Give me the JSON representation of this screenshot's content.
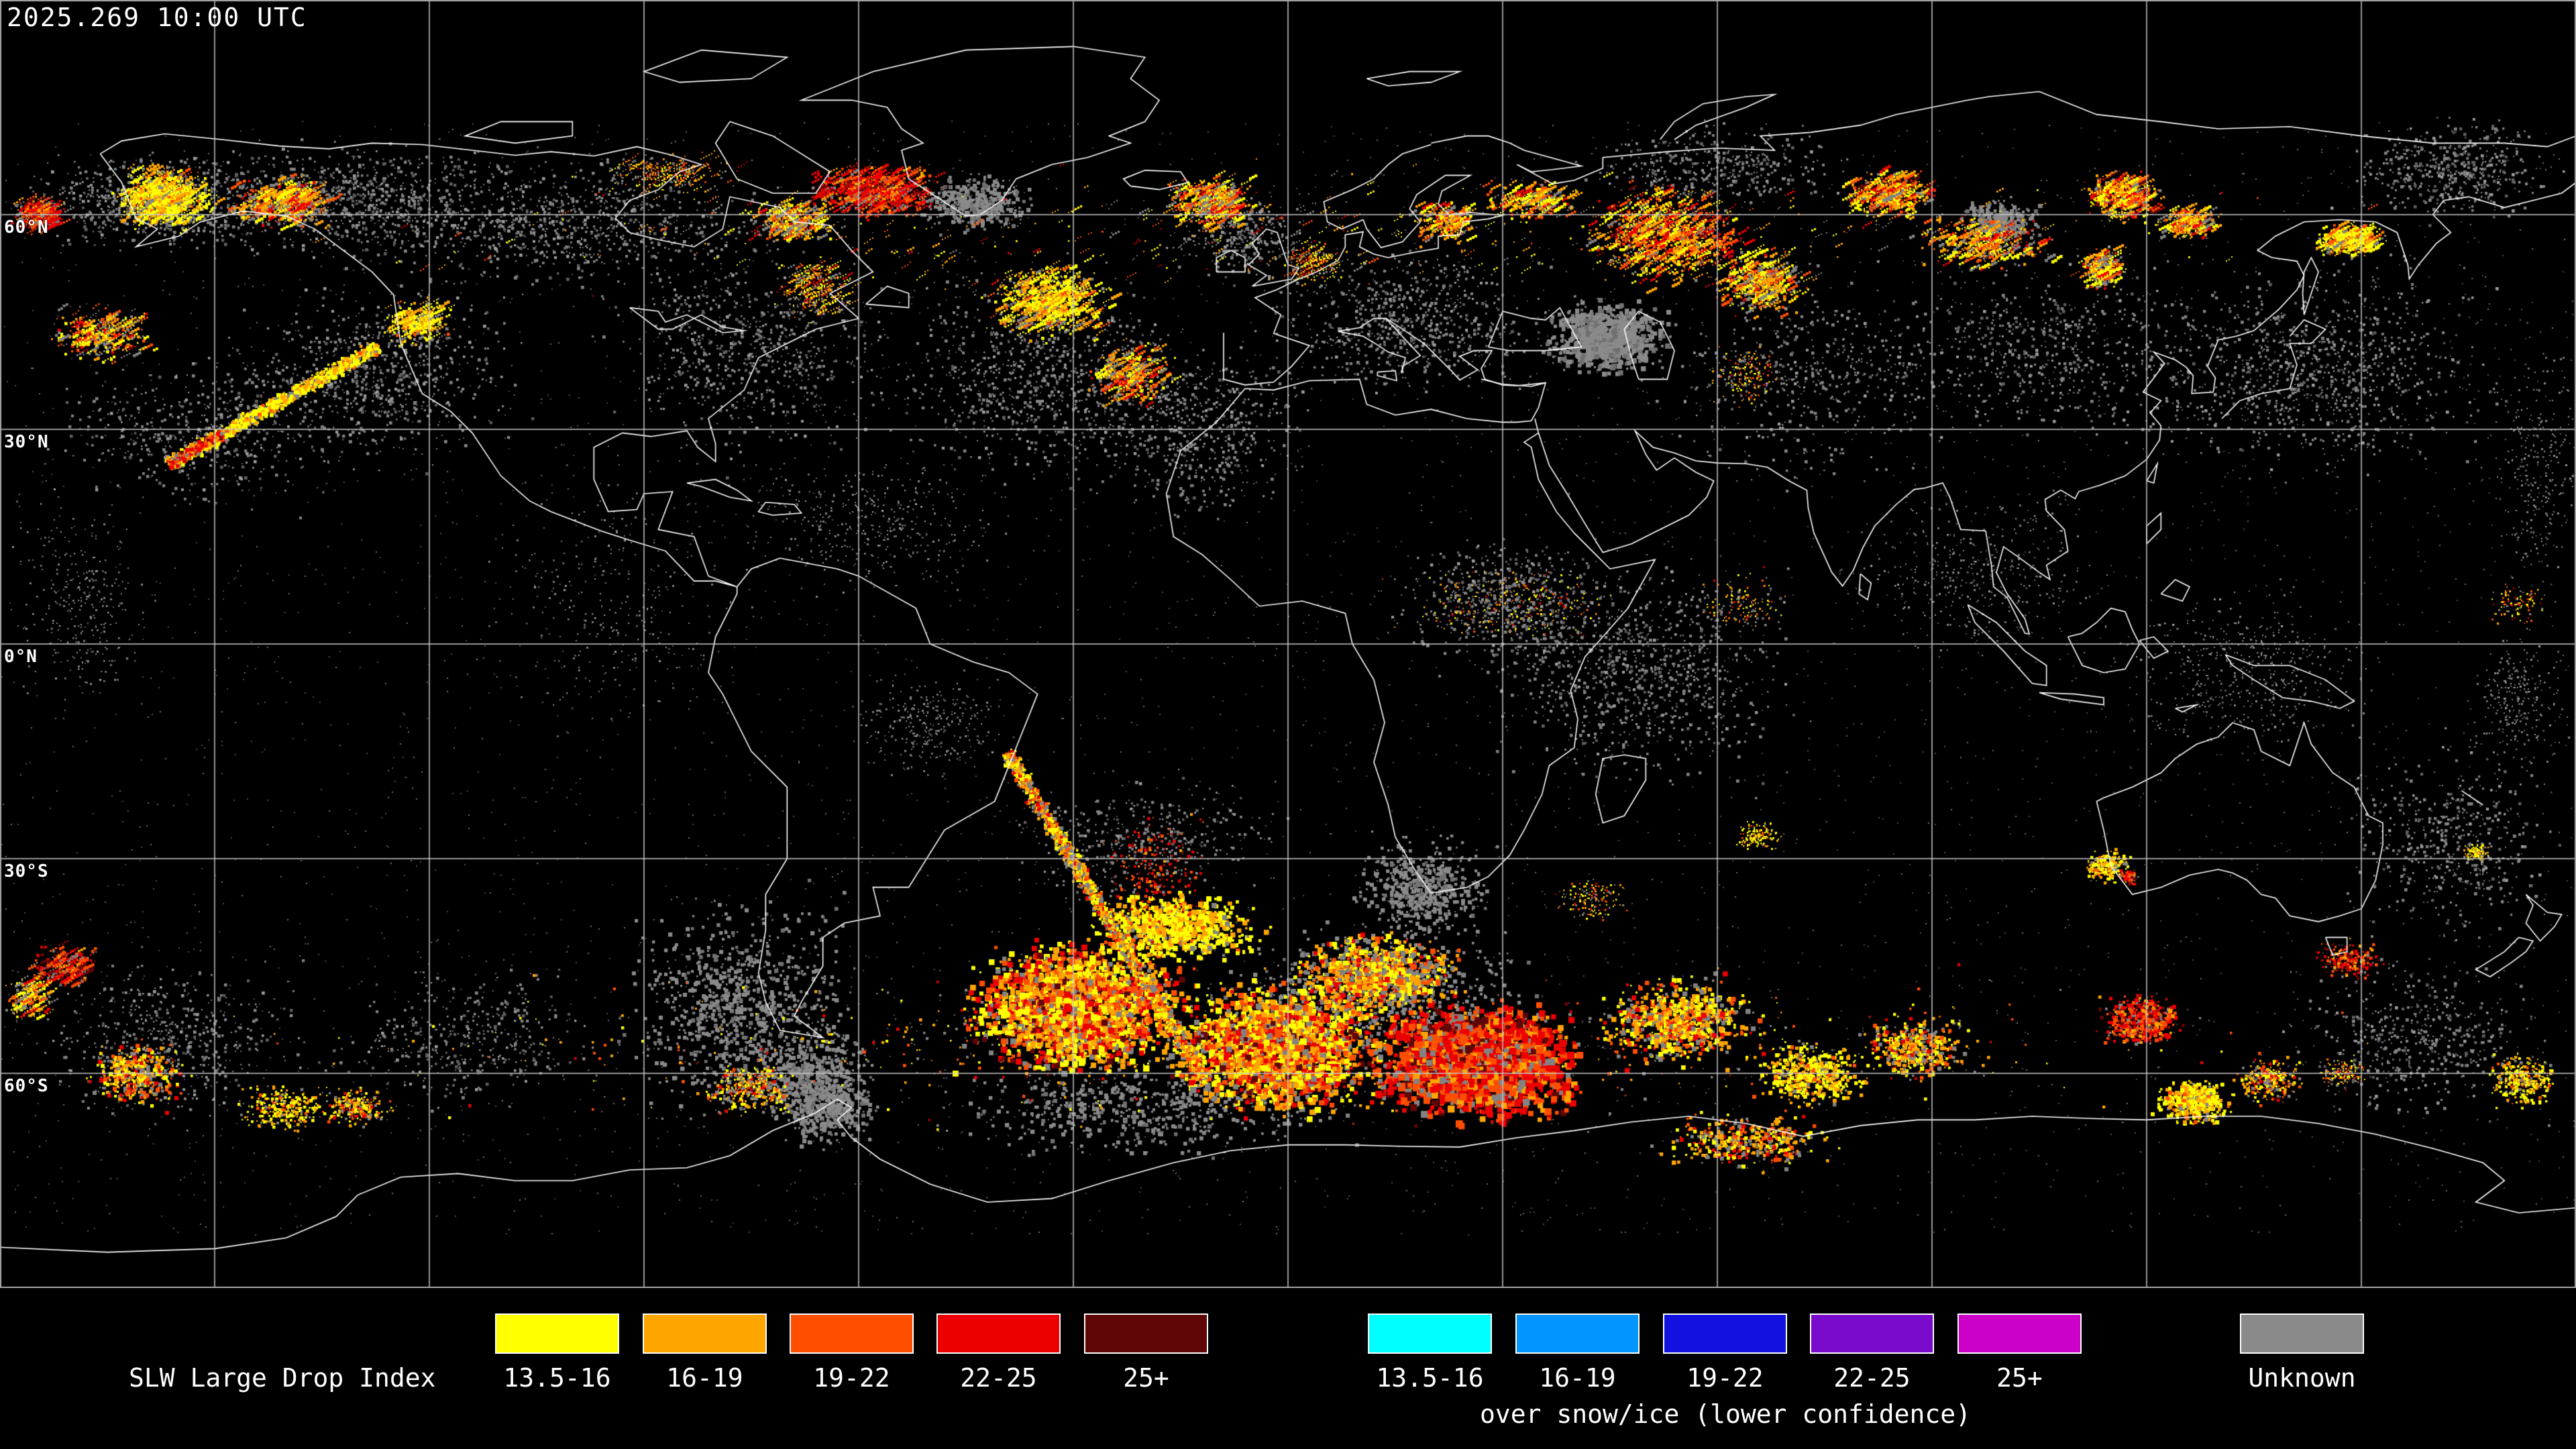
{
  "header": {
    "timestamp": "2025.269 10:00 UTC"
  },
  "map": {
    "projection": "equirectangular world map",
    "background_color": "#000000",
    "grid_color": "#c9c9c9",
    "coastline_color": "#ffffff",
    "frame_color": "#aaaaaa",
    "cloud_gray_color": "#828282",
    "lat_labels": [
      {
        "label": "60°N"
      },
      {
        "label": "30°N"
      },
      {
        "label": "0°N"
      },
      {
        "label": "30°S"
      },
      {
        "label": "60°S"
      }
    ]
  },
  "legend": {
    "slw": {
      "title": "SLW Large Drop Index",
      "items": [
        {
          "label": "13.5-16",
          "color": "#FFFF00"
        },
        {
          "label": "16-19",
          "color": "#FFA500"
        },
        {
          "label": "19-22",
          "color": "#FF4E00"
        },
        {
          "label": "22-25",
          "color": "#EC0000"
        },
        {
          "label": "25+",
          "color": "#600606"
        }
      ]
    },
    "snow_ice": {
      "caption": "over snow/ice (lower confidence)",
      "items": [
        {
          "label": "13.5-16",
          "color": "#00FFFF"
        },
        {
          "label": "16-19",
          "color": "#0095FF"
        },
        {
          "label": "19-22",
          "color": "#1212E0"
        },
        {
          "label": "22-25",
          "color": "#7A0ACC"
        },
        {
          "label": "25+",
          "color": "#CC00C8"
        }
      ]
    },
    "unknown": {
      "label": "Unknown",
      "color": "#8A8A8A"
    }
  }
}
